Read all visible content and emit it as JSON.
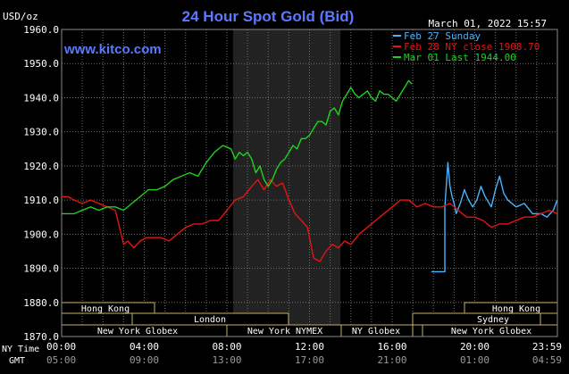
{
  "header": {
    "unit": "USD/oz",
    "title": "24 Hour Spot Gold (Bid)",
    "timestamp": "March 01, 2022 15:57",
    "watermark": "www.kitco.com"
  },
  "colors": {
    "background": "#000000",
    "title": "#5b79ff",
    "grid": "#6e6e6e",
    "session_shade": "#222222",
    "session_box": "#c8b060",
    "axis_text": "#ffffff",
    "feb27": "#46b4ff",
    "feb28": "#e41414",
    "mar01": "#1ed21e"
  },
  "footer": {
    "row1_label": "NY Time",
    "row2_label": "GMT"
  },
  "markets": {
    "hong_kong_left": "Hong Kong",
    "london": "London",
    "ny_globex_left": "New York Globex",
    "ny_nymex": "New York NYMEX",
    "ny_globex_mid": "NY Globex",
    "hong_kong_right": "Hong Kong",
    "sydney": "Sydney",
    "ny_globex_right": "New York Globex"
  },
  "chart_data": {
    "type": "line",
    "title": "24 Hour Spot Gold (Bid)",
    "ylabel": "USD/oz",
    "ylim": [
      1870,
      1960
    ],
    "xlim": [
      0,
      24
    ],
    "y_ticks": [
      "1960.0",
      "1950.0",
      "1940.0",
      "1930.0",
      "1920.0",
      "1910.0",
      "1900.0",
      "1890.0",
      "1880.0",
      "1870.0"
    ],
    "x_ticks_ny": [
      "00:00",
      "04:00",
      "08:00",
      "12:00",
      "16:00",
      "20:00",
      "23:59"
    ],
    "x_ticks_gmt": [
      "05:00",
      "09:00",
      "13:00",
      "17:00",
      "21:00",
      "01:00",
      "04:59"
    ],
    "shaded_region": [
      8.3,
      13.5
    ],
    "grid": true,
    "legend_position": "top-right",
    "series": [
      {
        "name": "Feb 27 Sunday",
        "color": "#46b4ff",
        "x": [
          17.9,
          18.55,
          18.55,
          18.7,
          18.8,
          18.9,
          19.0,
          19.1,
          19.3,
          19.5,
          19.7,
          19.9,
          20.1,
          20.3,
          20.5,
          20.8,
          21.0,
          21.2,
          21.4,
          21.6,
          22.0,
          22.4,
          22.8,
          23.2,
          23.5,
          23.8,
          23.99
        ],
        "y": [
          1889,
          1889,
          1908,
          1921,
          1914,
          1911,
          1909,
          1906,
          1909,
          1913,
          1910,
          1908,
          1910,
          1914,
          1911,
          1908,
          1913,
          1917,
          1912,
          1910,
          1908,
          1909,
          1906,
          1906,
          1905,
          1907,
          1910
        ]
      },
      {
        "name": "Feb 28 NY close 1908.70",
        "color": "#e41414",
        "x": [
          0.0,
          0.3,
          0.6,
          1.0,
          1.4,
          1.8,
          2.2,
          2.6,
          2.8,
          3.0,
          3.2,
          3.5,
          3.8,
          4.1,
          4.4,
          4.8,
          5.2,
          5.6,
          6.0,
          6.4,
          6.8,
          7.2,
          7.6,
          8.0,
          8.4,
          8.8,
          9.2,
          9.5,
          9.8,
          10.1,
          10.4,
          10.7,
          11.0,
          11.3,
          11.6,
          11.9,
          12.2,
          12.5,
          12.8,
          13.1,
          13.4,
          13.7,
          14.0,
          14.4,
          14.8,
          15.2,
          15.6,
          16.0,
          16.4,
          16.8,
          17.2,
          17.6,
          18.0,
          18.4,
          18.8,
          19.2,
          19.6,
          20.0,
          20.4,
          20.8,
          21.2,
          21.6,
          22.0,
          22.4,
          22.8,
          23.2,
          23.6,
          23.99
        ],
        "y": [
          1911,
          1911,
          1910,
          1909,
          1910,
          1909,
          1908,
          1907,
          1902,
          1897,
          1898,
          1896,
          1898,
          1899,
          1899,
          1899,
          1898,
          1900,
          1902,
          1903,
          1903,
          1904,
          1904,
          1907,
          1910,
          1911,
          1914,
          1916,
          1913,
          1916,
          1914,
          1915,
          1910,
          1906,
          1904,
          1902,
          1893,
          1892,
          1895,
          1897,
          1896,
          1898,
          1897,
          1900,
          1902,
          1904,
          1906,
          1908,
          1910,
          1910,
          1908,
          1909,
          1908,
          1908,
          1909,
          1907,
          1905,
          1905,
          1904,
          1902,
          1903,
          1903,
          1904,
          1905,
          1905,
          1906,
          1907,
          1906
        ]
      },
      {
        "name": "Mar 01 Last 1944.00",
        "color": "#1ed21e",
        "x": [
          0.0,
          0.3,
          0.6,
          1.0,
          1.4,
          1.8,
          2.2,
          2.6,
          3.0,
          3.4,
          3.8,
          4.2,
          4.6,
          5.0,
          5.4,
          5.8,
          6.2,
          6.6,
          7.0,
          7.4,
          7.8,
          8.2,
          8.4,
          8.6,
          8.8,
          9.0,
          9.2,
          9.4,
          9.6,
          9.8,
          10.0,
          10.2,
          10.4,
          10.6,
          10.8,
          11.0,
          11.2,
          11.4,
          11.6,
          11.8,
          12.0,
          12.2,
          12.4,
          12.6,
          12.8,
          13.0,
          13.2,
          13.4,
          13.6,
          13.8,
          14.0,
          14.2,
          14.4,
          14.6,
          14.8,
          15.0,
          15.2,
          15.4,
          15.6,
          15.8,
          16.0,
          16.2,
          16.4,
          16.6,
          16.8,
          16.95
        ],
        "y": [
          1906,
          1906,
          1906,
          1907,
          1908,
          1907,
          1908,
          1908,
          1907,
          1909,
          1911,
          1913,
          1913,
          1914,
          1916,
          1917,
          1918,
          1917,
          1921,
          1924,
          1926,
          1925,
          1922,
          1924,
          1923,
          1924,
          1922,
          1918,
          1920,
          1916,
          1914,
          1916,
          1919,
          1921,
          1922,
          1924,
          1926,
          1925,
          1928,
          1928,
          1929,
          1931,
          1933,
          1933,
          1932,
          1936,
          1937,
          1935,
          1939,
          1941,
          1943,
          1941,
          1940,
          1941,
          1942,
          1940,
          1939,
          1942,
          1941,
          1941,
          1940,
          1939,
          1941,
          1943,
          1945,
          1944
        ]
      }
    ]
  }
}
